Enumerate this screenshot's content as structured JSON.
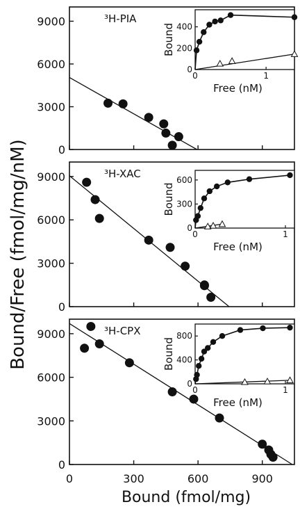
{
  "figure": {
    "ylabel": "Bound/Free (fmol/mg/nM)",
    "xlabel": "Bound (fmol/mg)",
    "x_ticks": [
      "0",
      "300",
      "600",
      "900"
    ]
  },
  "chart_data": [
    {
      "type": "scatter",
      "title": "³H-PIA",
      "xlim": [
        0,
        1050
      ],
      "ylim": [
        0,
        10000
      ],
      "y_ticks": [
        0,
        3000,
        6000,
        9000
      ],
      "series": [
        {
          "x": [
            180,
            250,
            370,
            440,
            450,
            480,
            510
          ],
          "y": [
            3250,
            3200,
            2250,
            1800,
            1150,
            300,
            900
          ]
        }
      ],
      "fit_line": {
        "x": [
          0,
          595
        ],
        "y": [
          5050,
          0
        ]
      },
      "inset": {
        "ylabel": "Bound",
        "xlabel": "Free (nM)",
        "xlim": [
          0,
          1.4
        ],
        "ylim": [
          0,
          560
        ],
        "x_ticks": [
          0,
          1
        ],
        "y_ticks": [
          0,
          200,
          400
        ],
        "filled": {
          "x": [
            0.02,
            0.06,
            0.12,
            0.2,
            0.28,
            0.36,
            0.5,
            1.4
          ],
          "y": [
            180,
            260,
            350,
            420,
            450,
            460,
            510,
            490
          ]
        },
        "open": {
          "x": [
            0.35,
            0.52,
            1.4
          ],
          "y": [
            55,
            80,
            145
          ]
        }
      }
    },
    {
      "type": "scatter",
      "title": "³H-XAC",
      "xlim": [
        0,
        1050
      ],
      "ylim": [
        0,
        10000
      ],
      "y_ticks": [
        0,
        3000,
        6000,
        9000
      ],
      "series": [
        {
          "x": [
            80,
            120,
            140,
            370,
            470,
            540,
            630,
            660,
            630
          ],
          "y": [
            8600,
            7400,
            6100,
            4600,
            4100,
            2800,
            1450,
            650,
            1500
          ]
        }
      ],
      "fit_line": {
        "x": [
          0,
          745
        ],
        "y": [
          9050,
          0
        ]
      },
      "inset": {
        "ylabel": "Bound",
        "xlabel": "Free (nM)",
        "xlim": [
          0,
          1.1
        ],
        "ylim": [
          0,
          720
        ],
        "x_ticks": [
          0,
          1
        ],
        "y_ticks": [
          0,
          300,
          600
        ],
        "filled": {
          "x": [
            0.01,
            0.03,
            0.06,
            0.1,
            0.16,
            0.24,
            0.36,
            0.6,
            1.05
          ],
          "y": [
            100,
            150,
            250,
            370,
            460,
            520,
            570,
            610,
            660
          ]
        },
        "open": {
          "x": [
            0.14,
            0.2,
            0.3
          ],
          "y": [
            20,
            30,
            50
          ]
        }
      }
    },
    {
      "type": "scatter",
      "title": "³H-CPX",
      "xlim": [
        0,
        1050
      ],
      "ylim": [
        0,
        10000
      ],
      "y_ticks": [
        0,
        3000,
        6000,
        9000
      ],
      "series": [
        {
          "x": [
            70,
            100,
            140,
            280,
            480,
            580,
            700,
            900,
            930,
            940,
            950
          ],
          "y": [
            8000,
            9500,
            8300,
            7000,
            5000,
            4500,
            3200,
            1400,
            1000,
            700,
            500
          ]
        }
      ],
      "fit_line": {
        "x": [
          0,
          1040
        ],
        "y": [
          9700,
          0
        ]
      },
      "inset": {
        "ylabel": "Bound",
        "xlabel": "Free (nM)",
        "xlim": [
          0,
          1.1
        ],
        "ylim": [
          0,
          1000
        ],
        "x_ticks": [
          0,
          1
        ],
        "y_ticks": [
          0,
          400,
          800
        ],
        "filled": {
          "x": [
            0.01,
            0.02,
            0.04,
            0.07,
            0.1,
            0.14,
            0.2,
            0.3,
            0.5,
            0.75,
            1.05
          ],
          "y": [
            80,
            150,
            300,
            420,
            540,
            600,
            700,
            800,
            900,
            930,
            940
          ]
        },
        "open": {
          "x": [
            0.55,
            0.8,
            1.05
          ],
          "y": [
            30,
            40,
            60
          ]
        }
      }
    }
  ]
}
